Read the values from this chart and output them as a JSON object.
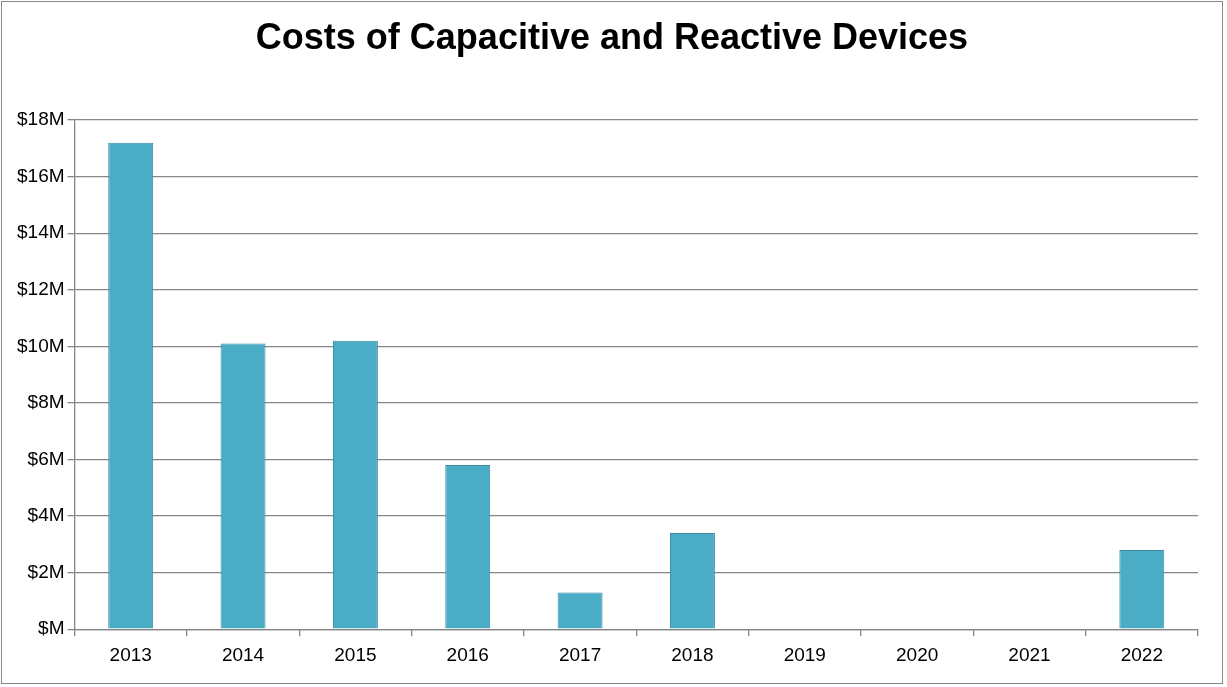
{
  "chart_data": {
    "type": "bar",
    "title": "Costs of Capacitive and Reactive Devices",
    "categories": [
      "2013",
      "2014",
      "2015",
      "2016",
      "2017",
      "2018",
      "2019",
      "2020",
      "2021",
      "2022"
    ],
    "values": [
      17.2,
      10.1,
      10.2,
      5.8,
      1.3,
      3.4,
      0,
      0,
      0,
      2.8
    ],
    "color": "#4bacc6",
    "ylim": [
      0,
      18
    ],
    "yticks": [
      {
        "value": 0,
        "label": "$M"
      },
      {
        "value": 2,
        "label": "$2M"
      },
      {
        "value": 4,
        "label": "$4M"
      },
      {
        "value": 6,
        "label": "$6M"
      },
      {
        "value": 8,
        "label": "$8M"
      },
      {
        "value": 10,
        "label": "$10M"
      },
      {
        "value": 12,
        "label": "$12M"
      },
      {
        "value": 14,
        "label": "$14M"
      },
      {
        "value": 16,
        "label": "$16M"
      },
      {
        "value": 18,
        "label": "$18M"
      }
    ],
    "grid": "y"
  }
}
